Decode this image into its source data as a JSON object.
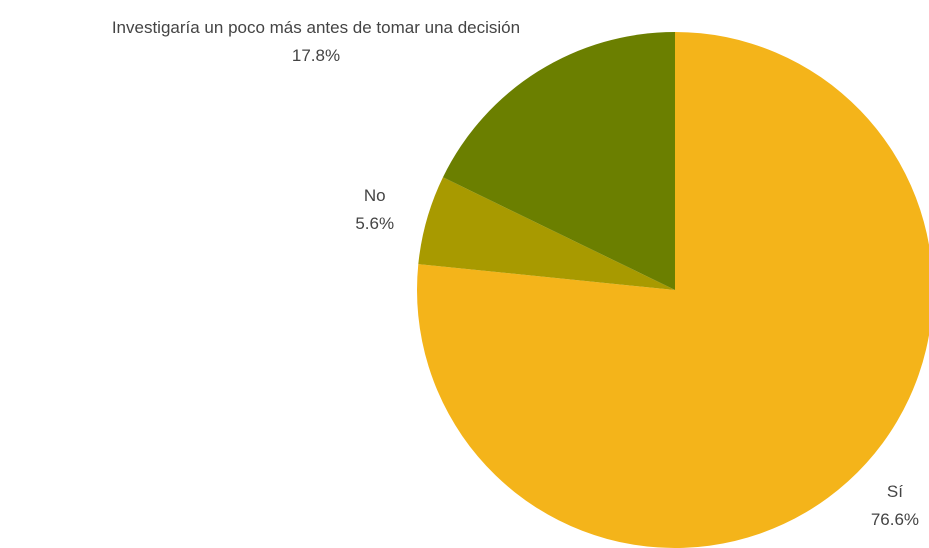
{
  "chart_data": {
    "type": "pie",
    "categories": [
      "Sí",
      "No",
      "Investigaría un poco más antes de tomar una decisión"
    ],
    "values": [
      76.6,
      5.6,
      17.8
    ],
    "value_labels": [
      "76.6%",
      "5.6%",
      "17.8%"
    ],
    "colors": [
      "#f4b41a",
      "#a89a00",
      "#6b7f00"
    ]
  }
}
